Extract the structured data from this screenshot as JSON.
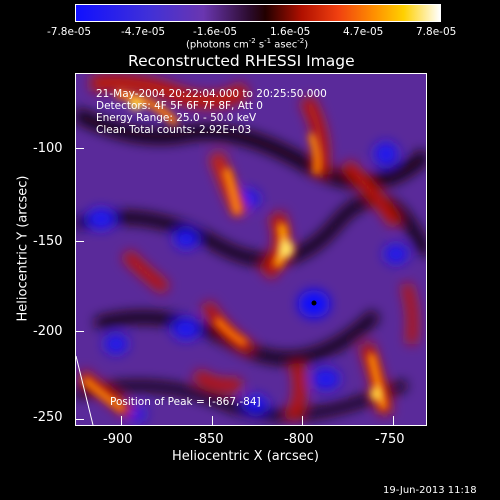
{
  "colorbar": {
    "ticks": [
      "-7.8e-05",
      "-4.7e-05",
      "-1.6e-05",
      "1.6e-05",
      "4.7e-05",
      "7.8e-05"
    ],
    "units": "(photons cm",
    "units_exp1": "-2",
    "units_mid": " s",
    "units_exp2": "-1",
    "units_mid2": " asec",
    "units_exp3": "-2",
    "units_end": ")"
  },
  "plot": {
    "title": "Reconstructed RHESSI Image",
    "xlabel": "Heliocentric X (arcsec)",
    "ylabel": "Heliocentric Y (arcsec)",
    "xticks": [
      "-900",
      "-850",
      "-800",
      "-750"
    ],
    "yticks": [
      "-100",
      "-150",
      "-200",
      "-250"
    ],
    "info_lines": [
      "21-May-2004 20:22:04.000 to 20:25:50.000",
      "Detectors: 4F 5F 6F 7F 8F, Att 0",
      "Energy Range: 25.0 - 50.0 keV",
      "Clean     Total counts: 2.92E+03"
    ],
    "peak_label": "Position of Peak = [-867,-84]"
  },
  "footer": {
    "date": "19-Jun-2013 11:18"
  },
  "colors": {
    "blue": "#1010ff",
    "purple": "#6a36b0",
    "dark": "#1a0418",
    "red": "#c01800",
    "orange": "#ff8a00",
    "yellow": "#ffe070"
  }
}
